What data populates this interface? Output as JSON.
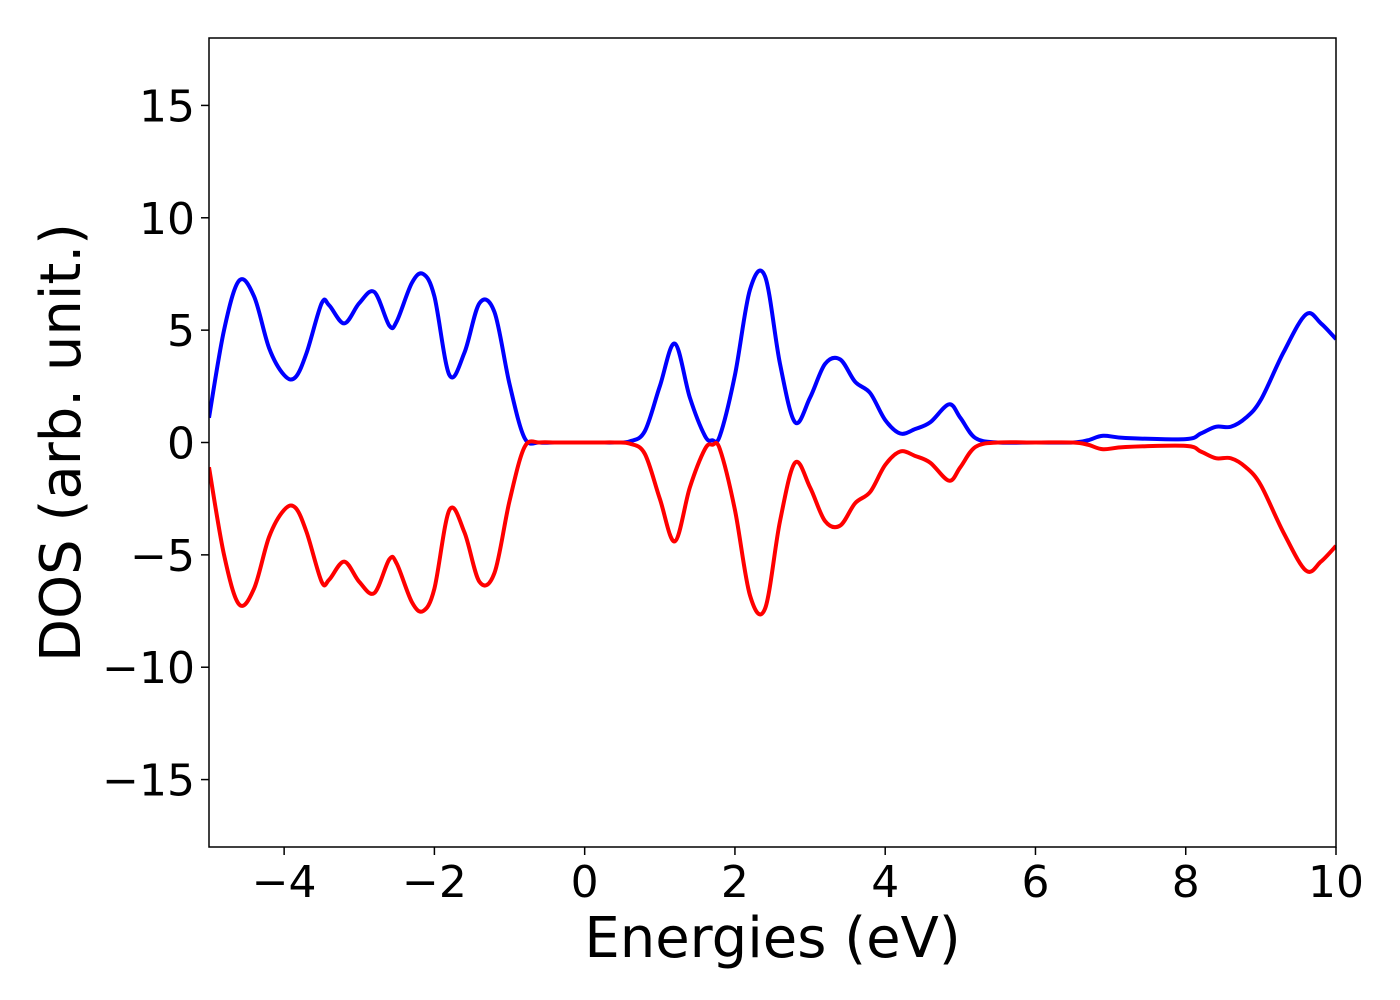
{
  "chart_data": {
    "type": "line",
    "xlabel": "Energies (eV)",
    "ylabel": "DOS (arb. unit.)",
    "xlim": [
      -5,
      10
    ],
    "ylim": [
      -18,
      18
    ],
    "xticks": [
      -4,
      -2,
      0,
      2,
      4,
      6,
      8,
      10
    ],
    "xtick_labels": [
      "−4",
      "−2",
      "0",
      "2",
      "4",
      "6",
      "8",
      "10"
    ],
    "yticks": [
      15,
      10,
      5,
      0,
      -5,
      -10,
      -15
    ],
    "ytick_labels": [
      "15",
      "10",
      "5",
      "0",
      "−5",
      "−10",
      "−15"
    ],
    "grid": false,
    "series": [
      {
        "color": "#0000ff",
        "x": [
          -5.0,
          -4.8,
          -4.6,
          -4.4,
          -4.2,
          -4.0,
          -3.85,
          -3.7,
          -3.5,
          -3.4,
          -3.2,
          -3.0,
          -2.8,
          -2.6,
          -2.5,
          -2.3,
          -2.15,
          -2.0,
          -1.8,
          -1.6,
          -1.4,
          -1.2,
          -1.0,
          -0.8,
          -0.6,
          -0.4,
          -0.2,
          0.0,
          0.2,
          0.4,
          0.6,
          0.8,
          1.0,
          1.2,
          1.4,
          1.6,
          1.7,
          1.8,
          2.0,
          2.2,
          2.4,
          2.6,
          2.8,
          3.0,
          3.2,
          3.4,
          3.6,
          3.8,
          4.0,
          4.2,
          4.4,
          4.6,
          4.85,
          5.0,
          5.2,
          5.5,
          6.0,
          6.5,
          6.7,
          6.9,
          7.2,
          8.0,
          8.2,
          8.4,
          8.6,
          8.8,
          9.0,
          9.3,
          9.6,
          9.8,
          10.0
        ],
        "y": [
          1.1,
          5.0,
          7.2,
          6.5,
          4.2,
          3.0,
          2.9,
          4.0,
          6.2,
          6.1,
          5.3,
          6.2,
          6.7,
          5.2,
          5.4,
          7.1,
          7.5,
          6.5,
          3.0,
          4.0,
          6.2,
          5.8,
          2.6,
          0.2,
          0.0,
          0.0,
          0.0,
          0.0,
          0.0,
          0.0,
          0.05,
          0.5,
          2.5,
          4.4,
          2.0,
          0.3,
          0.1,
          0.3,
          3.0,
          6.8,
          7.4,
          3.5,
          0.9,
          2.0,
          3.5,
          3.7,
          2.7,
          2.2,
          1.0,
          0.4,
          0.6,
          0.9,
          1.7,
          1.1,
          0.2,
          0.0,
          0.0,
          0.0,
          0.1,
          0.3,
          0.2,
          0.15,
          0.4,
          0.7,
          0.7,
          1.1,
          1.9,
          4.0,
          5.7,
          5.3,
          4.6
        ]
      },
      {
        "color": "#ff0000",
        "x": [
          -5.0,
          -4.8,
          -4.6,
          -4.4,
          -4.2,
          -4.0,
          -3.85,
          -3.7,
          -3.5,
          -3.4,
          -3.2,
          -3.0,
          -2.8,
          -2.6,
          -2.5,
          -2.3,
          -2.15,
          -2.0,
          -1.8,
          -1.6,
          -1.4,
          -1.2,
          -1.0,
          -0.8,
          -0.6,
          -0.4,
          -0.2,
          0.0,
          0.2,
          0.4,
          0.6,
          0.8,
          1.0,
          1.2,
          1.4,
          1.6,
          1.7,
          1.8,
          2.0,
          2.2,
          2.4,
          2.6,
          2.8,
          3.0,
          3.2,
          3.4,
          3.6,
          3.8,
          4.0,
          4.2,
          4.4,
          4.6,
          4.85,
          5.0,
          5.2,
          5.5,
          6.0,
          6.5,
          6.7,
          6.9,
          7.2,
          8.0,
          8.2,
          8.4,
          8.6,
          8.8,
          9.0,
          9.3,
          9.6,
          9.8,
          10.0
        ],
        "y": [
          -1.1,
          -5.0,
          -7.2,
          -6.5,
          -4.2,
          -3.0,
          -2.9,
          -4.0,
          -6.2,
          -6.1,
          -5.3,
          -6.2,
          -6.7,
          -5.2,
          -5.4,
          -7.1,
          -7.5,
          -6.5,
          -3.0,
          -4.0,
          -6.2,
          -5.8,
          -2.6,
          -0.2,
          0.0,
          0.0,
          0.0,
          0.0,
          0.0,
          0.0,
          -0.05,
          -0.5,
          -2.5,
          -4.4,
          -2.0,
          -0.3,
          -0.1,
          -0.3,
          -3.0,
          -6.8,
          -7.4,
          -3.5,
          -0.9,
          -2.0,
          -3.5,
          -3.7,
          -2.7,
          -2.2,
          -1.0,
          -0.4,
          -0.6,
          -0.9,
          -1.7,
          -1.1,
          -0.2,
          0.0,
          0.0,
          0.0,
          -0.1,
          -0.3,
          -0.2,
          -0.15,
          -0.4,
          -0.7,
          -0.7,
          -1.1,
          -1.9,
          -4.0,
          -5.7,
          -5.3,
          -4.6
        ]
      }
    ]
  }
}
